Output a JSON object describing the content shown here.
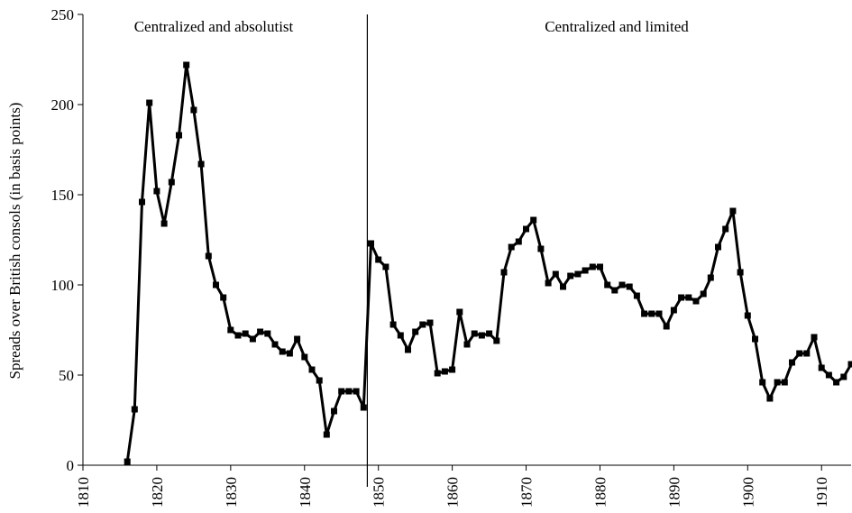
{
  "chart_data": {
    "type": "line",
    "title": "",
    "xlabel": "",
    "ylabel": "Spreads over British consols (in basis points)",
    "xlim": [
      1810,
      1914
    ],
    "ylim": [
      0,
      250
    ],
    "x_ticks": [
      "1810",
      "1820",
      "1830",
      "1840",
      "1850",
      "1860",
      "1870",
      "1880",
      "1890",
      "1900",
      "1910"
    ],
    "y_ticks": [
      "0",
      "50",
      "100",
      "150",
      "200",
      "250"
    ],
    "grid": false,
    "legend": null,
    "series_color": "#000000",
    "regime_divider_year": 1848.5,
    "regions": [
      {
        "label": "Centralized and absolutist"
      },
      {
        "label": "Centralized and limited"
      }
    ],
    "series": [
      {
        "x": [
          1816,
          1817,
          1818,
          1819,
          1820,
          1821,
          1822,
          1823,
          1824,
          1825,
          1826,
          1827,
          1828,
          1829,
          1830,
          1831,
          1832,
          1833,
          1834,
          1835,
          1836,
          1837,
          1838,
          1839,
          1840,
          1841,
          1842,
          1843,
          1844,
          1845,
          1846,
          1847,
          1848,
          1849,
          1850,
          1851,
          1852,
          1853,
          1854,
          1855,
          1856,
          1857,
          1858,
          1859,
          1860,
          1861,
          1862,
          1863,
          1864,
          1865,
          1866,
          1867,
          1868,
          1869,
          1870,
          1871,
          1872,
          1873,
          1874,
          1875,
          1876,
          1877,
          1878,
          1879,
          1880,
          1881,
          1882,
          1883,
          1884,
          1885,
          1886,
          1887,
          1888,
          1889,
          1890,
          1891,
          1892,
          1893,
          1894,
          1895,
          1896,
          1897,
          1898,
          1899,
          1900,
          1901,
          1902,
          1903,
          1904,
          1905,
          1906,
          1907,
          1908,
          1909,
          1910,
          1911,
          1912,
          1913,
          1914
        ],
        "values": [
          2,
          31,
          146,
          201,
          152,
          134,
          157,
          183,
          222,
          197,
          167,
          116,
          100,
          93,
          75,
          72,
          73,
          70,
          74,
          73,
          67,
          63,
          62,
          70,
          60,
          53,
          47,
          17,
          30,
          41,
          41,
          41,
          32,
          123,
          114,
          110,
          78,
          72,
          64,
          74,
          78,
          79,
          51,
          52,
          53,
          85,
          67,
          73,
          72,
          73,
          69,
          107,
          121,
          124,
          131,
          136,
          120,
          101,
          106,
          99,
          105,
          106,
          108,
          110,
          110,
          100,
          97,
          100,
          99,
          94,
          84,
          84,
          84,
          77,
          86,
          93,
          93,
          91,
          95,
          104,
          121,
          131,
          141,
          107,
          83,
          70,
          46,
          37,
          46,
          46,
          57,
          62,
          62,
          71,
          54,
          50,
          46,
          49,
          56
        ]
      }
    ]
  }
}
